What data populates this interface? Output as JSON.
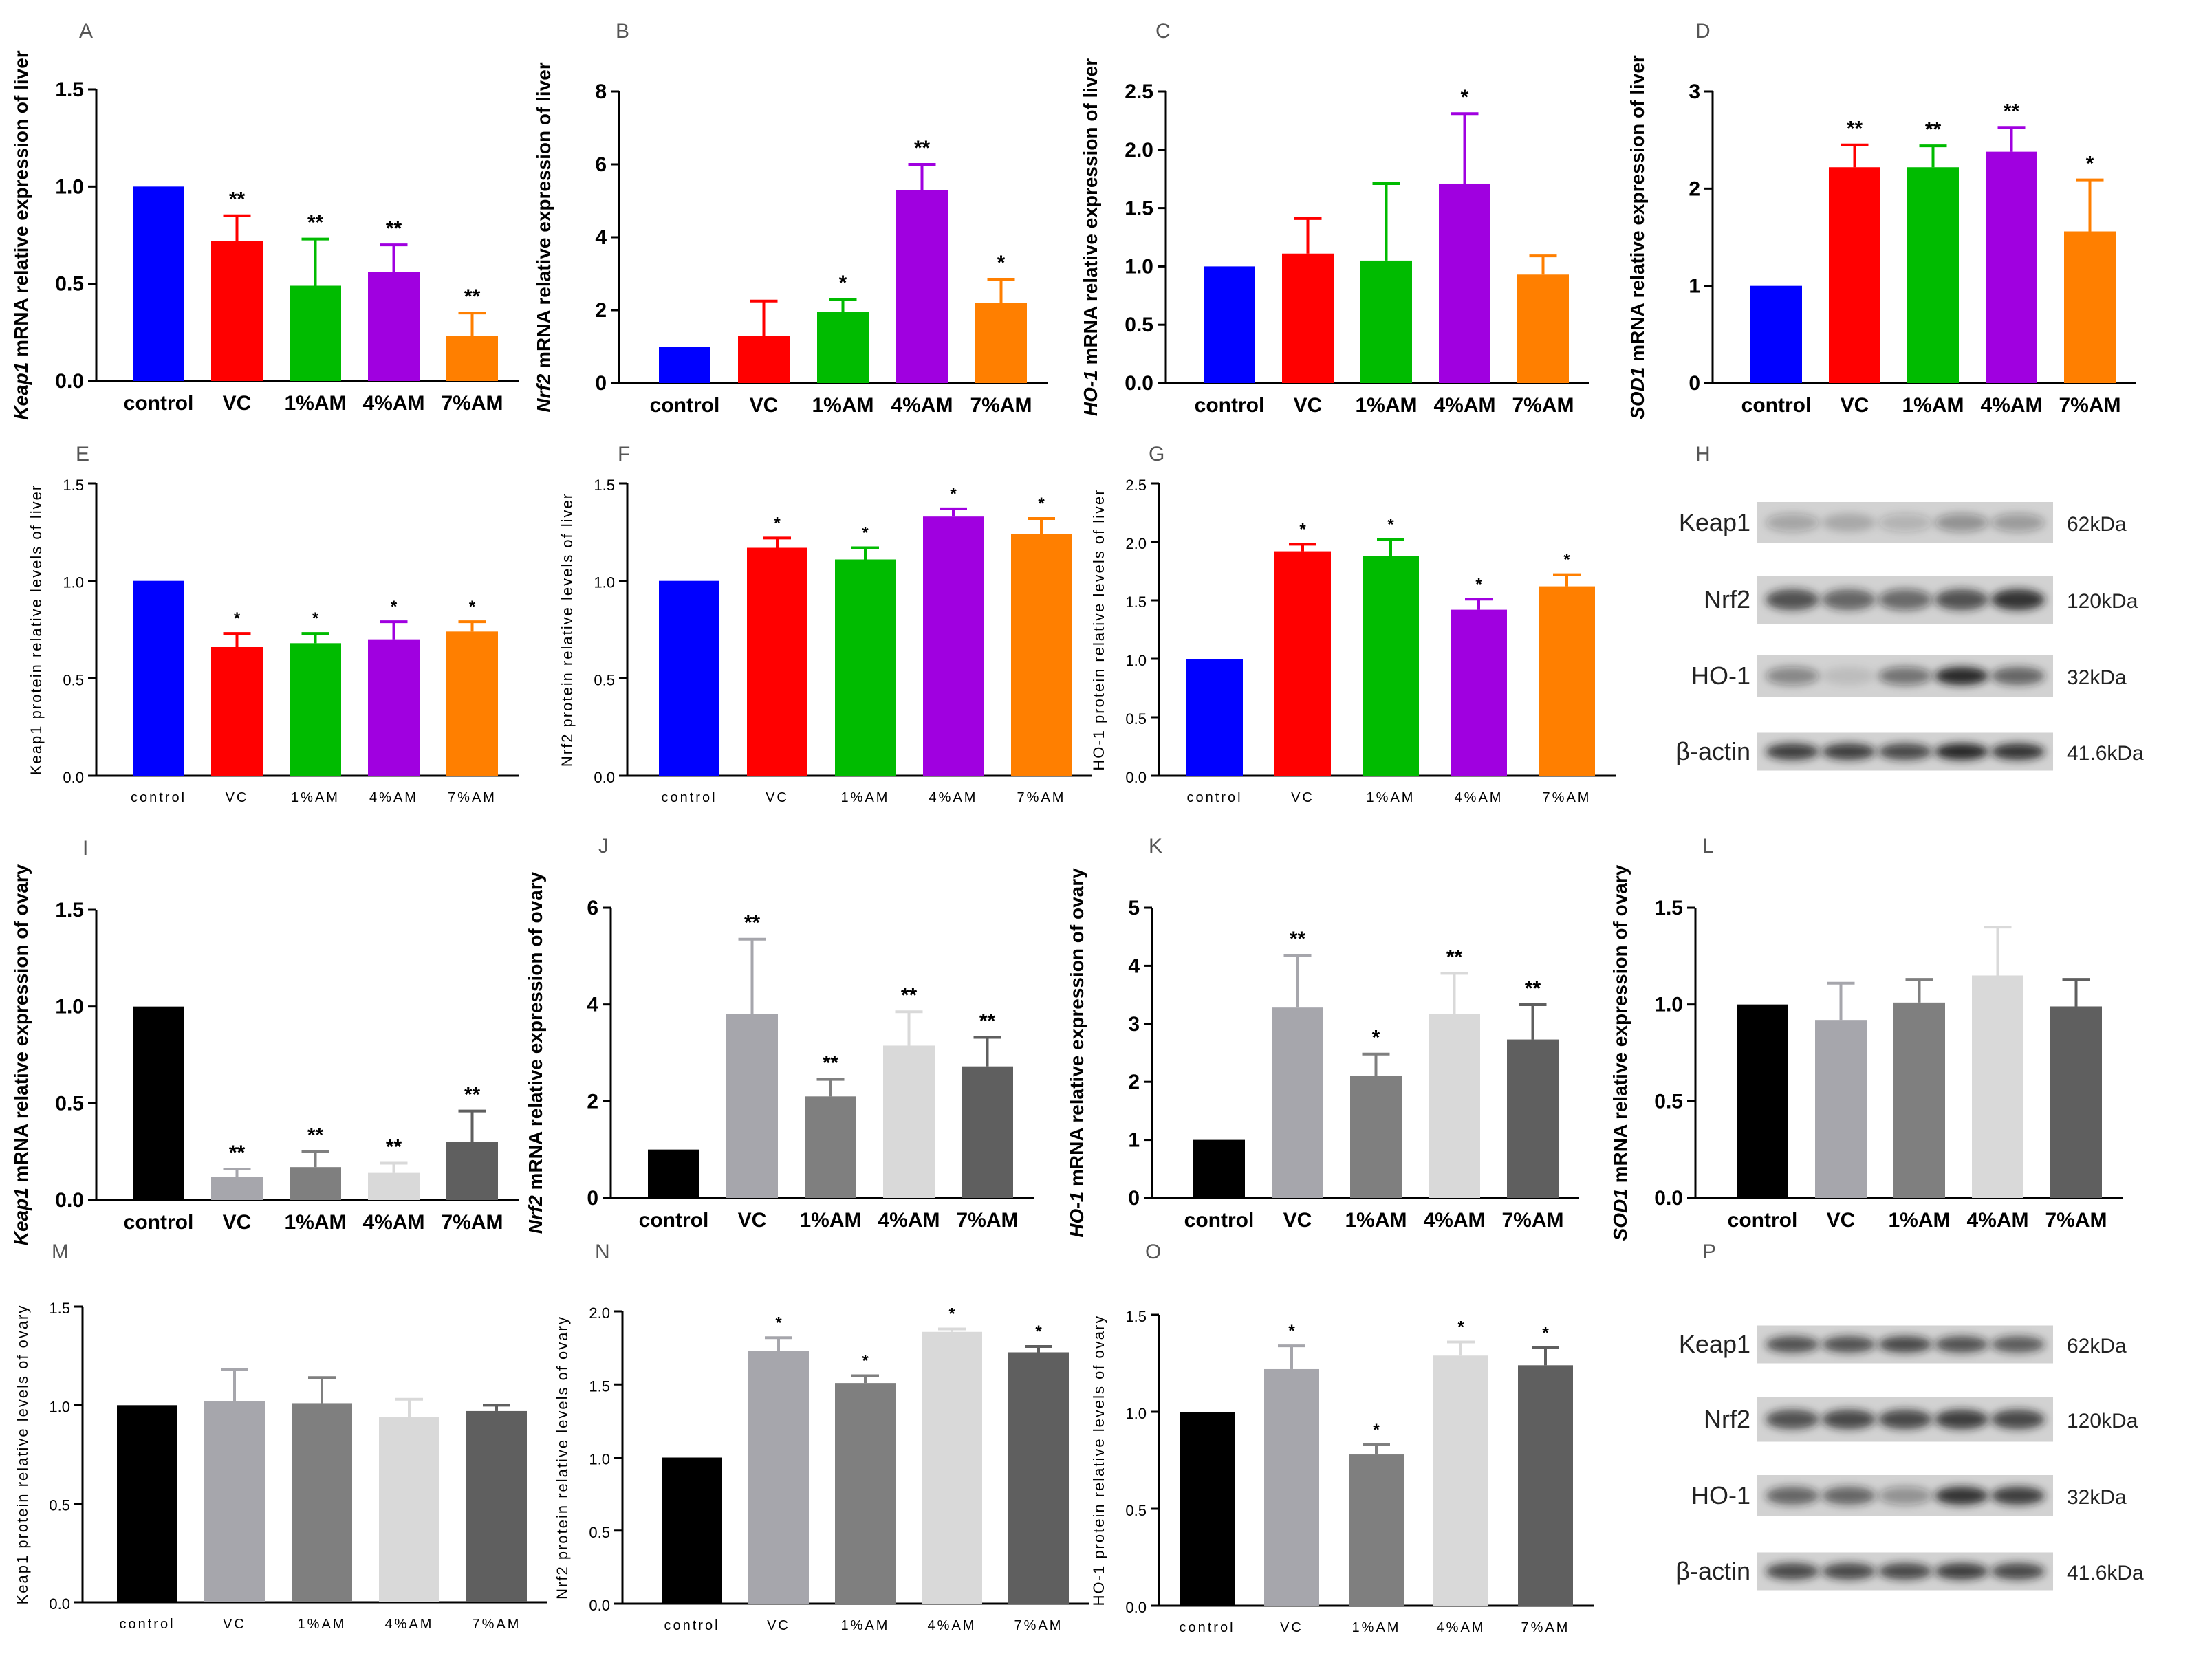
{
  "colors": {
    "liver": [
      "#0000ff",
      "#ff0000",
      "#00bb00",
      "#a000e0",
      "#ff7f00"
    ],
    "ovary": [
      "#000000",
      "#a6a6ac",
      "#7f7f7f",
      "#d9d9d9",
      "#5f5f5f"
    ]
  },
  "chart_data": [
    {
      "letter": "A",
      "type": "bar",
      "title": "",
      "ylabel_italic": "Keap1",
      "ylabel_rest": " mRNA relative expression of liver",
      "categories": [
        "control",
        "VC",
        "1%AM",
        "4%AM",
        "7%AM"
      ],
      "values": [
        1.0,
        0.72,
        0.49,
        0.56,
        0.23
      ],
      "errors": [
        0,
        0.13,
        0.24,
        0.14,
        0.12
      ],
      "sig": [
        "",
        "**",
        "**",
        "**",
        "**"
      ],
      "ylim": [
        0,
        1.5
      ],
      "ticks": [
        "0.0",
        "0.5",
        "1.0",
        "1.5"
      ],
      "palette": "liver",
      "style": "bold"
    },
    {
      "letter": "B",
      "type": "bar",
      "title": "",
      "ylabel_italic": "Nrf2",
      "ylabel_rest": " mRNA relative expression of liver",
      "categories": [
        "control",
        "VC",
        "1%AM",
        "4%AM",
        "7%AM"
      ],
      "values": [
        1.0,
        1.3,
        1.95,
        5.3,
        2.2
      ],
      "errors": [
        0,
        0.95,
        0.35,
        0.7,
        0.65
      ],
      "sig": [
        "",
        "",
        "*",
        "**",
        "*"
      ],
      "ylim": [
        0,
        8
      ],
      "ticks": [
        "0",
        "2",
        "4",
        "6",
        "8"
      ],
      "palette": "liver",
      "style": "bold"
    },
    {
      "letter": "C",
      "type": "bar",
      "title": "",
      "ylabel_italic": "HO-1",
      "ylabel_rest": " mRNA relative expression of liver",
      "categories": [
        "control",
        "VC",
        "1%AM",
        "4%AM",
        "7%AM"
      ],
      "values": [
        1.0,
        1.11,
        1.05,
        1.71,
        0.93
      ],
      "errors": [
        0,
        0.3,
        0.66,
        0.6,
        0.16
      ],
      "sig": [
        "",
        "",
        "",
        "*",
        ""
      ],
      "ylim": [
        0,
        2.5
      ],
      "ticks": [
        "0.0",
        "0.5",
        "1.0",
        "1.5",
        "2.0",
        "2.5"
      ],
      "palette": "liver",
      "style": "bold"
    },
    {
      "letter": "D",
      "type": "bar",
      "title": "",
      "ylabel_italic": "SOD1",
      "ylabel_rest": " mRNA relative expression of liver",
      "categories": [
        "control",
        "VC",
        "1%AM",
        "4%AM",
        "7%AM"
      ],
      "values": [
        1.0,
        2.22,
        2.22,
        2.38,
        1.56
      ],
      "errors": [
        0,
        0.23,
        0.22,
        0.25,
        0.53
      ],
      "sig": [
        "",
        "**",
        "**",
        "**",
        "*"
      ],
      "ylim": [
        0,
        3
      ],
      "ticks": [
        "0",
        "1",
        "2",
        "3"
      ],
      "palette": "liver",
      "style": "bold"
    },
    {
      "letter": "E",
      "type": "bar",
      "title": "",
      "ylabel_italic": "",
      "ylabel_rest": "Keap1 protein relative levels of liver",
      "categories": [
        "control",
        "VC",
        "1%AM",
        "4%AM",
        "7%AM"
      ],
      "values": [
        1.0,
        0.66,
        0.68,
        0.7,
        0.74
      ],
      "errors": [
        0,
        0.07,
        0.05,
        0.09,
        0.05
      ],
      "sig": [
        "",
        "*",
        "*",
        "*",
        "*"
      ],
      "ylim": [
        0,
        1.5
      ],
      "ticks": [
        "0.0",
        "0.5",
        "1.0",
        "1.5"
      ],
      "palette": "liver",
      "style": "light"
    },
    {
      "letter": "F",
      "type": "bar",
      "title": "",
      "ylabel_italic": "",
      "ylabel_rest": "Nrf2 protein relative levels of liver",
      "categories": [
        "control",
        "VC",
        "1%AM",
        "4%AM",
        "7%AM"
      ],
      "values": [
        1.0,
        1.17,
        1.11,
        1.33,
        1.24
      ],
      "errors": [
        0,
        0.05,
        0.06,
        0.04,
        0.08
      ],
      "sig": [
        "",
        "*",
        "*",
        "*",
        "*"
      ],
      "ylim": [
        0,
        1.5
      ],
      "ticks": [
        "0.0",
        "0.5",
        "1.0",
        "1.5"
      ],
      "palette": "liver",
      "style": "light"
    },
    {
      "letter": "G",
      "type": "bar",
      "title": "",
      "ylabel_italic": "",
      "ylabel_rest": "HO-1 protein relative levels of liver",
      "categories": [
        "control",
        "VC",
        "1%AM",
        "4%AM",
        "7%AM"
      ],
      "values": [
        1.0,
        1.92,
        1.88,
        1.42,
        1.62
      ],
      "errors": [
        0,
        0.06,
        0.14,
        0.09,
        0.1
      ],
      "sig": [
        "",
        "*",
        "*",
        "*",
        "*"
      ],
      "ylim": [
        0,
        2.5
      ],
      "ticks": [
        "0.0",
        "0.5",
        "1.0",
        "1.5",
        "2.0",
        "2.5"
      ],
      "palette": "liver",
      "style": "light"
    },
    {
      "letter": "I",
      "type": "bar",
      "title": "",
      "ylabel_italic": "Keap1",
      "ylabel_rest": " mRNA relative expression of ovary",
      "categories": [
        "control",
        "VC",
        "1%AM",
        "4%AM",
        "7%AM"
      ],
      "values": [
        1.0,
        0.12,
        0.17,
        0.14,
        0.3
      ],
      "errors": [
        0,
        0.04,
        0.08,
        0.05,
        0.16
      ],
      "sig": [
        "",
        "**",
        "**",
        "**",
        "**"
      ],
      "ylim": [
        0,
        1.5
      ],
      "ticks": [
        "0.0",
        "0.5",
        "1.0",
        "1.5"
      ],
      "palette": "ovary",
      "style": "bold"
    },
    {
      "letter": "J",
      "type": "bar",
      "title": "",
      "ylabel_italic": "Nrf2",
      "ylabel_rest": " mRNA relative expression of ovary",
      "categories": [
        "control",
        "VC",
        "1%AM",
        "4%AM",
        "7%AM"
      ],
      "values": [
        1.0,
        3.8,
        2.1,
        3.15,
        2.72
      ],
      "errors": [
        0,
        1.55,
        0.35,
        0.7,
        0.6
      ],
      "sig": [
        "",
        "**",
        "**",
        "**",
        "**"
      ],
      "ylim": [
        0,
        6
      ],
      "ticks": [
        "0",
        "2",
        "4",
        "6"
      ],
      "palette": "ovary",
      "style": "bold"
    },
    {
      "letter": "K",
      "type": "bar",
      "title": "",
      "ylabel_italic": "HO-1",
      "ylabel_rest": " mRNA relative expression of ovary",
      "categories": [
        "control",
        "VC",
        "1%AM",
        "4%AM",
        "7%AM"
      ],
      "values": [
        1.0,
        3.28,
        2.1,
        3.17,
        2.73
      ],
      "errors": [
        0,
        0.9,
        0.38,
        0.7,
        0.6
      ],
      "sig": [
        "",
        "**",
        "*",
        "**",
        "**"
      ],
      "ylim": [
        0,
        5
      ],
      "ticks": [
        "0",
        "1",
        "2",
        "3",
        "4",
        "5"
      ],
      "palette": "ovary",
      "style": "bold"
    },
    {
      "letter": "L",
      "type": "bar",
      "title": "",
      "ylabel_italic": "SOD1",
      "ylabel_rest": " mRNA relative expression of ovary",
      "categories": [
        "control",
        "VC",
        "1%AM",
        "4%AM",
        "7%AM"
      ],
      "values": [
        1.0,
        0.92,
        1.01,
        1.15,
        0.99
      ],
      "errors": [
        0,
        0.19,
        0.12,
        0.25,
        0.14
      ],
      "sig": [
        "",
        "",
        "",
        "",
        ""
      ],
      "ylim": [
        0,
        1.5
      ],
      "ticks": [
        "0.0",
        "0.5",
        "1.0",
        "1.5"
      ],
      "palette": "ovary",
      "style": "bold"
    },
    {
      "letter": "M",
      "type": "bar",
      "title": "",
      "ylabel_italic": "",
      "ylabel_rest": "Keap1 protein relative levels of ovary",
      "categories": [
        "control",
        "VC",
        "1%AM",
        "4%AM",
        "7%AM"
      ],
      "values": [
        1.0,
        1.02,
        1.01,
        0.94,
        0.97
      ],
      "errors": [
        0,
        0.16,
        0.13,
        0.09,
        0.03
      ],
      "sig": [
        "",
        "",
        "",
        "",
        ""
      ],
      "ylim": [
        0,
        1.5
      ],
      "ticks": [
        "0.0",
        "0.5",
        "1.0",
        "1.5"
      ],
      "palette": "ovary",
      "style": "light"
    },
    {
      "letter": "N",
      "type": "bar",
      "title": "",
      "ylabel_italic": "",
      "ylabel_rest": "Nrf2 protein relative levels of ovary",
      "categories": [
        "control",
        "VC",
        "1%AM",
        "4%AM",
        "7%AM"
      ],
      "values": [
        1.0,
        1.73,
        1.51,
        1.86,
        1.72
      ],
      "errors": [
        0,
        0.09,
        0.05,
        0.02,
        0.04
      ],
      "sig": [
        "",
        "*",
        "*",
        "*",
        "*"
      ],
      "ylim": [
        0,
        2.0
      ],
      "ticks": [
        "0.0",
        "0.5",
        "1.0",
        "1.5",
        "2.0"
      ],
      "palette": "ovary",
      "style": "light"
    },
    {
      "letter": "O",
      "type": "bar",
      "title": "",
      "ylabel_italic": "",
      "ylabel_rest": "HO-1 protein relative levels of ovary",
      "categories": [
        "control",
        "VC",
        "1%AM",
        "4%AM",
        "7%AM"
      ],
      "values": [
        1.0,
        1.22,
        0.78,
        1.29,
        1.24
      ],
      "errors": [
        0,
        0.12,
        0.05,
        0.07,
        0.09
      ],
      "sig": [
        "",
        "*",
        "*",
        "*",
        "*"
      ],
      "ylim": [
        0,
        1.5
      ],
      "ticks": [
        "0.0",
        "0.5",
        "1.0",
        "1.5"
      ],
      "palette": "ovary",
      "style": "light"
    }
  ],
  "blots": [
    {
      "letter": "H",
      "labels": [
        "Keap1",
        "Nrf2",
        "HO-1",
        "β-actin"
      ],
      "sizes": [
        "62kDa",
        "120kDa",
        "32kDa",
        "41.6kDa"
      ]
    },
    {
      "letter": "P",
      "labels": [
        "Keap1",
        "Nrf2",
        "HO-1",
        "β-actin"
      ],
      "sizes": [
        "62kDa",
        "120kDa",
        "32kDa",
        "41.6kDa"
      ]
    }
  ]
}
